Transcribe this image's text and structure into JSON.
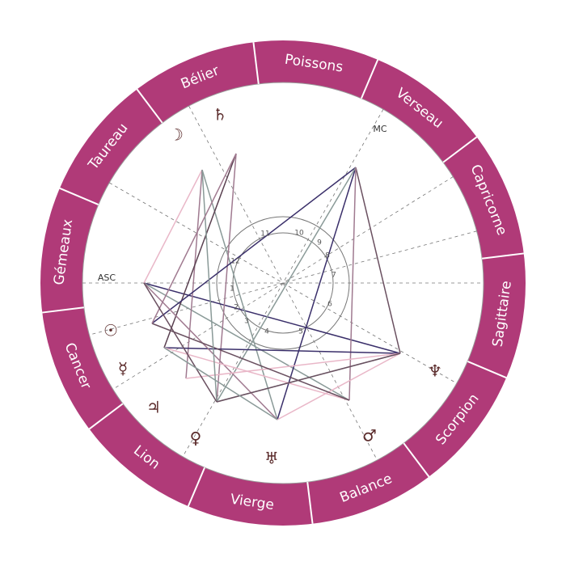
{
  "signs": [
    "Poissons",
    "Verseau",
    "Capricorne",
    "Sagittaire",
    "Scorpion",
    "Balance",
    "Vierge",
    "Lion",
    "Cancer",
    "Gémeaux",
    "Taureau",
    "Bélier"
  ],
  "houses": [
    "1",
    "2",
    "3",
    "4",
    "5",
    "6",
    "7",
    "8",
    "9",
    "10",
    "11",
    "12"
  ],
  "angles": {
    "asc": "ASC",
    "mc": "MC"
  },
  "planets": [
    "♄",
    "☽",
    "☉",
    "☿",
    "♃",
    "♀",
    "♅",
    "♂",
    "♆"
  ]
}
